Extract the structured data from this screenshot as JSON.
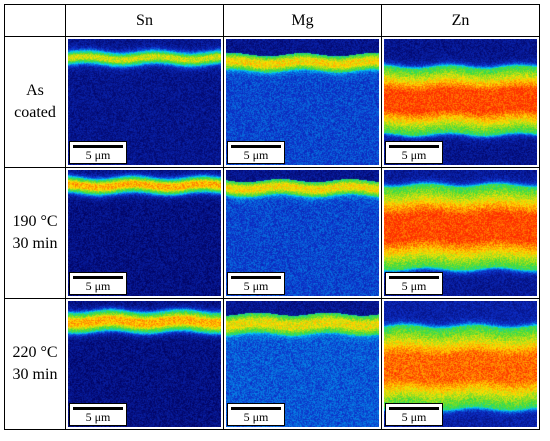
{
  "header": {
    "columns": [
      "Sn",
      "Mg",
      "Zn"
    ]
  },
  "rows": [
    {
      "label_lines": [
        "As",
        "coated"
      ]
    },
    {
      "label_lines": [
        "190 °C",
        "30 min"
      ]
    },
    {
      "label_lines": [
        "220 °C",
        "30 min"
      ]
    }
  ],
  "scale_bar_label": "5 μm",
  "colors": {
    "map_background": "#00005a",
    "low": "#0d2fc8",
    "cyan": "#00d0ff",
    "green": "#3cdc3c",
    "yellow": "#ffe000",
    "high": "#ff2a00"
  },
  "maps": [
    [
      {
        "element": "Sn",
        "band": [
          0.1,
          0.2
        ],
        "peak": 0.75,
        "bg": 0.1
      },
      {
        "element": "Mg",
        "band": [
          0.12,
          0.25
        ],
        "peak": 0.8,
        "bg": 0.25
      },
      {
        "element": "Zn",
        "band": [
          0.22,
          0.75
        ],
        "peak": 0.97,
        "bg": 0.1
      }
    ],
    [
      {
        "element": "Sn",
        "band": [
          0.06,
          0.18
        ],
        "peak": 0.85,
        "bg": 0.08
      },
      {
        "element": "Mg",
        "band": [
          0.08,
          0.2
        ],
        "peak": 0.8,
        "bg": 0.25
      },
      {
        "element": "Zn",
        "band": [
          0.12,
          0.78
        ],
        "peak": 0.97,
        "bg": 0.12
      }
    ],
    [
      {
        "element": "Sn",
        "band": [
          0.08,
          0.24
        ],
        "peak": 0.85,
        "bg": 0.08
      },
      {
        "element": "Mg",
        "band": [
          0.1,
          0.26
        ],
        "peak": 0.78,
        "bg": 0.28
      },
      {
        "element": "Zn",
        "band": [
          0.2,
          0.85
        ],
        "peak": 0.93,
        "bg": 0.15
      }
    ]
  ]
}
